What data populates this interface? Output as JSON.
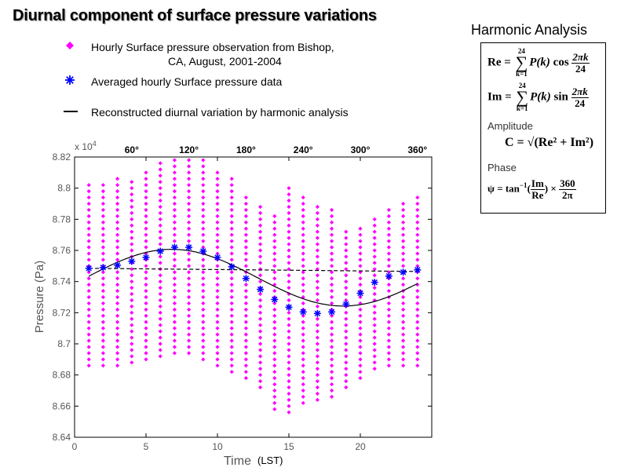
{
  "header": {
    "title": "Diurnal component of surface pressure variations"
  },
  "legend": {
    "observations_line1": "Hourly Surface pressure observation from Bishop,",
    "observations_line2": "CA, August, 2001-2004",
    "averaged": "Averaged hourly Surface pressure data",
    "reconstructed": "Reconstructed diurnal variation by harmonic analysis"
  },
  "harmonic": {
    "title": "Harmonic Analysis",
    "re_lhs": "Re",
    "im_lhs": "Im",
    "sum_top": "24",
    "sum_bottom": "k=1",
    "pk": "P(k)",
    "cos": "cos",
    "sin": "sin",
    "frac_num": "2πk",
    "frac_den": "24",
    "amplitude_label": "Amplitude",
    "amplitude_formula": "C = √(Re² + Im²)",
    "phase_label": "Phase",
    "phase_lhs": "ψ = tan",
    "phase_exp": "−1",
    "phase_frac_num": "Im",
    "phase_frac_den": "Re",
    "phase_times": "×",
    "phase_frac2_num": "360",
    "phase_frac2_den": "2π"
  },
  "colors": {
    "observations": "#ff00ff",
    "averaged": "#0000ff",
    "fit": "#000000",
    "mean": "#000000"
  },
  "chart_data": {
    "type": "scatter",
    "title": "",
    "xlabel": "Time",
    "xlabel_suffix": "(LST)",
    "ylabel": "Pressure (Pa)",
    "y_exponent": "x 10",
    "y_exponent_power": "4",
    "xlim": [
      0,
      25
    ],
    "ylim": [
      8.64,
      8.82
    ],
    "x_ticks": [
      0,
      5,
      10,
      15,
      20
    ],
    "y_ticks": [
      8.64,
      8.66,
      8.68,
      8.7,
      8.72,
      8.74,
      8.76,
      8.78,
      8.8,
      8.82
    ],
    "y_tick_labels": [
      "8.64",
      "8.66",
      "8.68",
      "8.7",
      "8.72",
      "8.74",
      "8.76",
      "8.78",
      "8.8",
      "8.82"
    ],
    "top_axis_ticks": [
      {
        "x": 4,
        "label": "60°"
      },
      {
        "x": 8,
        "label": "120°"
      },
      {
        "x": 12,
        "label": "180°"
      },
      {
        "x": 16,
        "label": "240°"
      },
      {
        "x": 20,
        "label": "300°"
      },
      {
        "x": 24,
        "label": "360°"
      }
    ],
    "observations": {
      "name": "Hourly Surface pressure observation from Bishop, CA, August, 2001-2004",
      "step": 0.004,
      "hourly_ranges": [
        [
          1,
          8.686,
          8.802
        ],
        [
          2,
          8.686,
          8.8
        ],
        [
          3,
          8.686,
          8.804
        ],
        [
          4,
          8.688,
          8.806
        ],
        [
          5,
          8.69,
          8.812
        ],
        [
          6,
          8.692,
          8.816
        ],
        [
          7,
          8.694,
          8.818
        ],
        [
          8,
          8.694,
          8.818
        ],
        [
          9,
          8.69,
          8.816
        ],
        [
          10,
          8.686,
          8.812
        ],
        [
          11,
          8.682,
          8.806
        ],
        [
          12,
          8.678,
          8.794
        ],
        [
          13,
          8.672,
          8.788
        ],
        [
          14,
          8.658,
          8.782
        ],
        [
          15,
          8.656,
          8.8
        ],
        [
          16,
          8.662,
          8.796
        ],
        [
          17,
          8.664,
          8.788
        ],
        [
          18,
          8.666,
          8.788
        ],
        [
          19,
          8.672,
          8.774
        ],
        [
          20,
          8.678,
          8.776
        ],
        [
          21,
          8.684,
          8.78
        ],
        [
          22,
          8.686,
          8.784
        ],
        [
          23,
          8.686,
          8.788
        ],
        [
          24,
          8.686,
          8.794
        ]
      ]
    },
    "averaged": {
      "name": "Averaged hourly Surface pressure data",
      "x": [
        1,
        2,
        3,
        4,
        5,
        6,
        7,
        8,
        9,
        10,
        11,
        12,
        13,
        14,
        15,
        16,
        17,
        18,
        19,
        20,
        21,
        22,
        23,
        24
      ],
      "y": [
        8.7485,
        8.749,
        8.7505,
        8.753,
        8.7555,
        8.7595,
        8.762,
        8.762,
        8.7595,
        8.7555,
        8.7495,
        8.742,
        8.735,
        8.7285,
        8.7235,
        8.7205,
        8.7195,
        8.7205,
        8.7255,
        8.7325,
        8.7395,
        8.7435,
        8.746,
        8.7475
      ]
    },
    "fit": {
      "name": "Reconstructed diurnal variation by harmonic analysis",
      "mean": 8.7425,
      "amplitude": 0.0182,
      "peak_hour": 6.8,
      "x_range": [
        1,
        24
      ]
    },
    "mean_line": {
      "name": "Daily mean",
      "y_start": 8.7485,
      "y_end": 8.7465,
      "style": "dashed"
    }
  }
}
